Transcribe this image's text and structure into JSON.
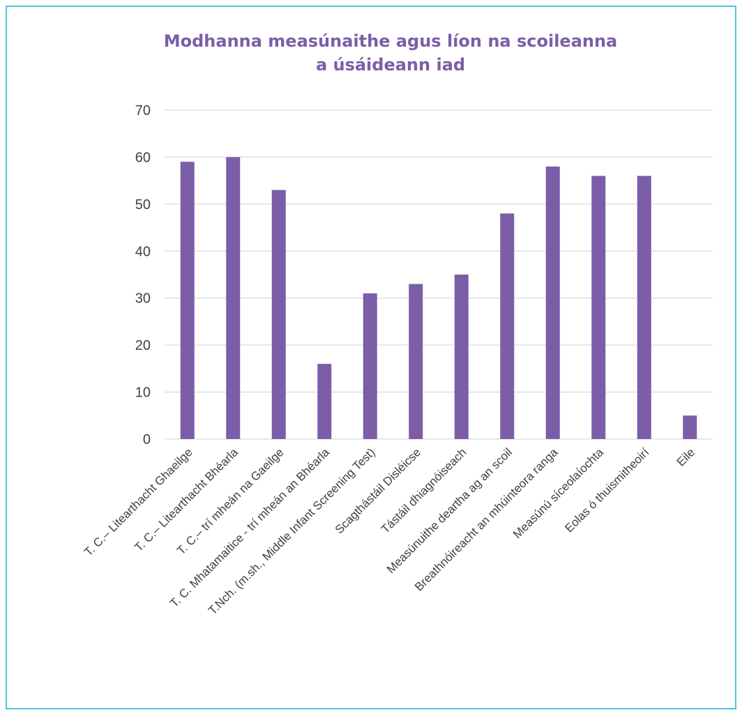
{
  "colors": {
    "bar": "#7b5ea7",
    "title": "#7b5ea7",
    "frame": "#4fc3dd",
    "grid": "#d0d0d0",
    "tick_text": "#404040"
  },
  "chart_data": {
    "type": "bar",
    "title_lines": [
      "Modhanna measúnaithe agus líon na scoileanna",
      "a úsáideann iad"
    ],
    "xlabel": "",
    "ylabel": "",
    "ylim": [
      0,
      70
    ],
    "yticks": [
      0,
      10,
      20,
      30,
      40,
      50,
      60,
      70
    ],
    "grid": true,
    "legend": "none",
    "categories": [
      "T. C.– Litearthacht Ghaeilge",
      "T. C.– Litearthacht Bhéarla",
      "T. C.– trí mheán na Gaeilge",
      "T. C. Mhatamaitice - trí mheán an Bhéarla",
      "T.Nch. (m.sh., Middle Infant Screening Test)",
      "Scagthástáil Disléicse",
      "Tástáil dhiagnóiseach",
      "Measúnuithe deartha ag an scoil",
      "Breathnóireacht an mhúinteora ranga",
      "Measúnú síceolaíochta",
      "Eolas ó thuismitheoirí",
      "Eile"
    ],
    "values": [
      59,
      60,
      53,
      16,
      31,
      33,
      35,
      48,
      58,
      56,
      56,
      5
    ]
  }
}
